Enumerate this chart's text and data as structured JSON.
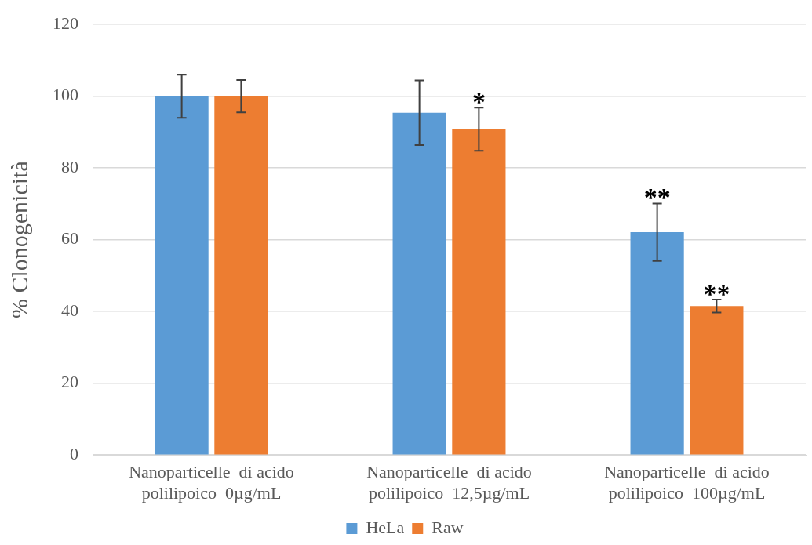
{
  "chart_data": {
    "type": "bar",
    "ylabel": "% Clonogenicità",
    "categories": [
      "Nanoparticelle  di acido polilipoico  0µg/mL",
      "Nanoparticelle  di acido polilipoico  12,5µg/mL",
      "Nanoparticelle  di acido polilipoico  100µg/mL"
    ],
    "series": [
      {
        "name": "HeLa",
        "color": "#5b9bd5",
        "values": [
          100,
          95.4,
          62.1
        ],
        "errors": [
          6,
          9,
          8
        ]
      },
      {
        "name": "Raw",
        "color": "#ed7d31",
        "values": [
          100,
          90.8,
          41.5
        ],
        "errors": [
          4.5,
          6,
          1.8
        ]
      }
    ],
    "ylim": [
      0,
      120
    ],
    "yticks": [
      0,
      20,
      40,
      60,
      80,
      100,
      120
    ],
    "grid": "y",
    "legend": "bottom",
    "annotations": [
      {
        "text": "*",
        "x": "Nanoparticelle  di acido polilipoico  12,5µg/mL",
        "y": 90.8
      },
      {
        "text": "**",
        "x": "Nanoparticelle  di acido polilipoico  100µg/mL",
        "y": 62.1
      },
      {
        "text": "**",
        "x": "Nanoparticelle  di acido polilipoico  100µg/mL",
        "y": 41.5
      }
    ]
  }
}
